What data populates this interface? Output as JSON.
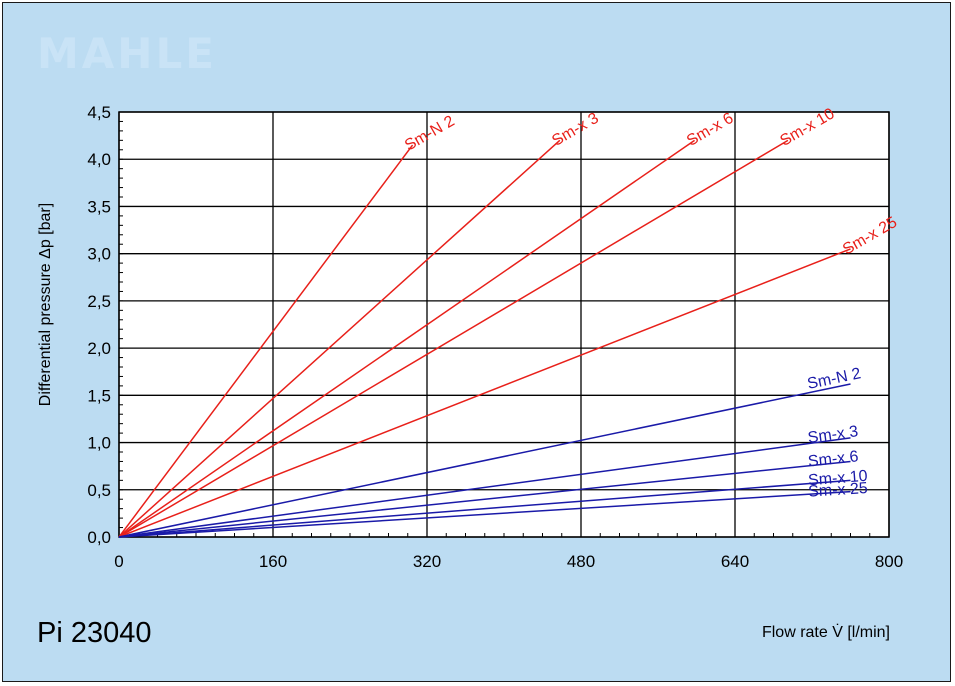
{
  "brand": {
    "logo_text": "MAHLE"
  },
  "product_id": "Pi 23040",
  "colors": {
    "background": "#bcdcf2",
    "red_series": "#e8201a",
    "blue_series": "#1a1aa8",
    "grid": "#000000"
  },
  "chart_data": {
    "type": "line",
    "title": "",
    "xlabel": "Flow rate V̇ [l/min]",
    "ylabel": "Differential pressure Δp [bar]",
    "xlim": [
      0,
      800
    ],
    "ylim": [
      0,
      4.5
    ],
    "x_ticks": [
      0,
      160,
      320,
      480,
      640,
      800
    ],
    "y_ticks": [
      "0,0",
      "0,5",
      "1,0",
      "1,5",
      "2,0",
      "2,5",
      "3,0",
      "3,5",
      "4,0",
      "4,5"
    ],
    "grid": true,
    "series": [
      {
        "name": "Sm-N 2",
        "group": "red",
        "x": [
          0,
          305
        ],
        "y": [
          0,
          4.15
        ]
      },
      {
        "name": "Sm-x 3",
        "group": "red",
        "x": [
          0,
          458
        ],
        "y": [
          0,
          4.2
        ]
      },
      {
        "name": "Sm-x 6",
        "group": "red",
        "x": [
          0,
          598
        ],
        "y": [
          0,
          4.2
        ]
      },
      {
        "name": "Sm-x 10",
        "group": "red",
        "x": [
          0,
          695
        ],
        "y": [
          0,
          4.2
        ]
      },
      {
        "name": "Sm-x 25",
        "group": "red",
        "x": [
          0,
          760
        ],
        "y": [
          0,
          3.05
        ]
      },
      {
        "name": "Sm-N 2",
        "group": "blue",
        "x": [
          0,
          760
        ],
        "y": [
          0,
          1.62
        ]
      },
      {
        "name": "Sm-x 3",
        "group": "blue",
        "x": [
          0,
          760
        ],
        "y": [
          0,
          1.05
        ]
      },
      {
        "name": "Sm-x 6",
        "group": "blue",
        "x": [
          0,
          760
        ],
        "y": [
          0,
          0.8
        ]
      },
      {
        "name": "Sm-x 10",
        "group": "blue",
        "x": [
          0,
          760
        ],
        "y": [
          0,
          0.6
        ]
      },
      {
        "name": "Sm-x 25",
        "group": "blue",
        "x": [
          0,
          760
        ],
        "y": [
          0,
          0.48
        ]
      }
    ]
  }
}
